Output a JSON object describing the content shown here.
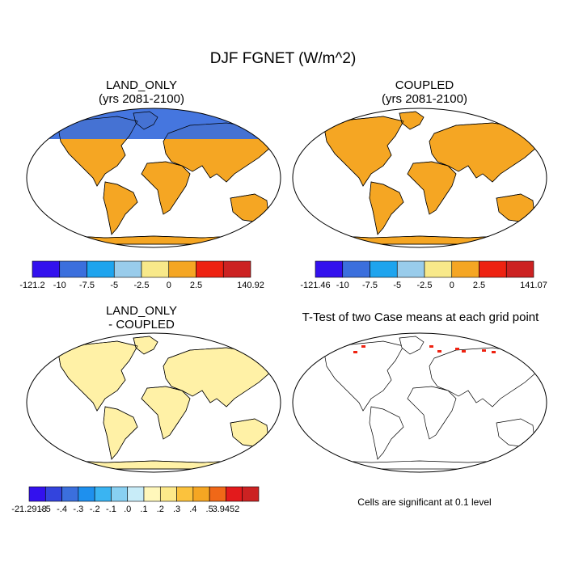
{
  "title": "DJF FGNET (W/m^2)",
  "panels": [
    {
      "title_line1": "LAND_ONLY",
      "title_line2": "(yrs 2081-2100)",
      "colorbar": {
        "colors": [
          "#3311ee",
          "#3b6fdd",
          "#1ea4ee",
          "#99cceb",
          "#f8e98a",
          "#f5a623",
          "#ee2211",
          "#cc2222"
        ],
        "labels": [
          "-121.2",
          "-10",
          "-7.5",
          "-5",
          "-2.5",
          "0",
          "2.5",
          "140.92"
        ]
      }
    },
    {
      "title_line1": "COUPLED",
      "title_line2": "(yrs 2081-2100)",
      "colorbar": {
        "colors": [
          "#3311ee",
          "#3b6fdd",
          "#1ea4ee",
          "#99cceb",
          "#f8e98a",
          "#f5a623",
          "#ee2211",
          "#cc2222"
        ],
        "labels": [
          "-121.46",
          "-10",
          "-7.5",
          "-5",
          "-2.5",
          "0",
          "2.5",
          "141.07"
        ]
      }
    },
    {
      "title_line1": "LAND_ONLY",
      "title_line2": "- COUPLED",
      "colorbar": {
        "colors": [
          "#3311ee",
          "#3344dd",
          "#3b6fdd",
          "#1e90ee",
          "#3ab4f2",
          "#88d0f2",
          "#c8ecf8",
          "#fff7bb",
          "#fde98a",
          "#fbc23d",
          "#f5a623",
          "#f06818",
          "#e31a1c",
          "#cc2222"
        ],
        "labels": [
          "-21.2918",
          "-.5",
          "-.4",
          "-.3",
          "-.2",
          "-.1",
          ".0",
          ".1",
          ".2",
          ".3",
          ".4",
          ".5",
          "3.9452"
        ]
      }
    },
    {
      "title_line1": "T-Test of two Case means at each grid point",
      "note": "Cells are significant at 0.1 level"
    }
  ]
}
